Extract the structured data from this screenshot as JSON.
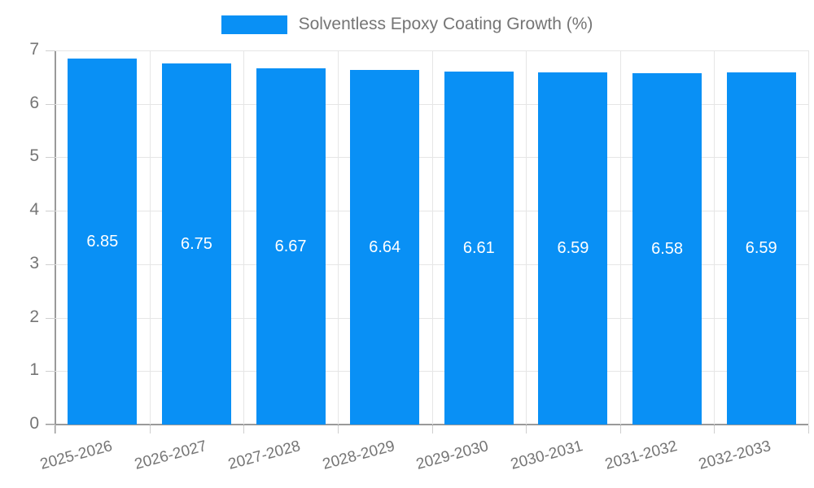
{
  "legend": {
    "label": "Solventless Epoxy Coating Growth (%)"
  },
  "chart_data": {
    "type": "bar",
    "title": "",
    "legend_label": "Solventless Epoxy Coating Growth (%)",
    "legend_position": "top",
    "categories": [
      "2025-2026",
      "2026-2027",
      "2027-2028",
      "2028-2029",
      "2029-2030",
      "2030-2031",
      "2031-2032",
      "2032-2033"
    ],
    "values": [
      6.85,
      6.75,
      6.67,
      6.64,
      6.61,
      6.59,
      6.58,
      6.59
    ],
    "value_labels": [
      "6.85",
      "6.75",
      "6.67",
      "6.64",
      "6.61",
      "6.59",
      "6.58",
      "6.59"
    ],
    "xlabel": "",
    "ylabel": "",
    "ylim": [
      0,
      7
    ],
    "yticks": [
      0,
      1,
      2,
      3,
      4,
      5,
      6,
      7
    ],
    "grid": true,
    "colors": {
      "bar": "#0990f5",
      "value_text": "#ffffff",
      "axis_text": "#757575",
      "axis_line": "#9a9a9a",
      "grid_line": "#e6e6e6",
      "tick_line": "#cfcfcf"
    }
  }
}
